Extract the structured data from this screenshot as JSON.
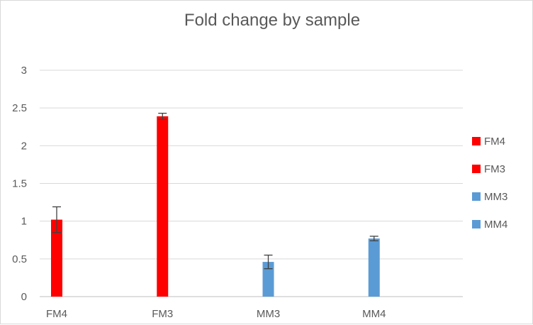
{
  "chart_data": {
    "type": "bar",
    "title": "Fold change by sample",
    "categories": [
      "FM4",
      "FM3",
      "MM3",
      "MM4"
    ],
    "series": [
      {
        "name": "FM4",
        "color": "#ff0000",
        "values": [
          1.02,
          null,
          null,
          null
        ],
        "error": [
          0.17,
          null,
          null,
          null
        ]
      },
      {
        "name": "FM3",
        "color": "#ff0000",
        "values": [
          null,
          2.39,
          null,
          null
        ],
        "error": [
          null,
          0.04,
          null,
          null
        ]
      },
      {
        "name": "MM3",
        "color": "#5b9bd5",
        "values": [
          null,
          null,
          0.46,
          null
        ],
        "error": [
          null,
          null,
          0.09,
          null
        ]
      },
      {
        "name": "MM4",
        "color": "#5b9bd5",
        "values": [
          null,
          null,
          null,
          0.77
        ],
        "error": [
          null,
          null,
          null,
          0.03
        ]
      }
    ],
    "yticks": [
      "0",
      "0.5",
      "1",
      "1.5",
      "2",
      "2.5",
      "3"
    ],
    "ylim": [
      0,
      3
    ],
    "grid": true,
    "legend_position": "right",
    "xlabel": "",
    "ylabel": ""
  }
}
